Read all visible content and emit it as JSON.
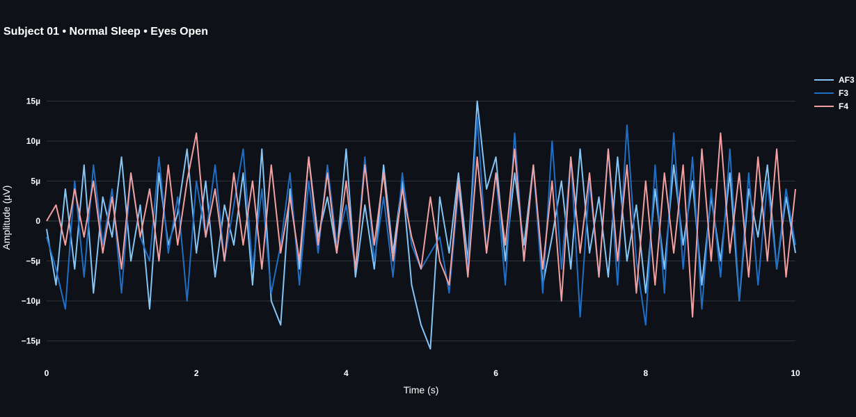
{
  "chart_data": {
    "type": "line",
    "title": "Subject 01 • Normal Sleep • Eyes Open",
    "xlabel": "Time (s)",
    "ylabel": "Amplitude (µV)",
    "xlim": [
      0,
      10
    ],
    "ylim": [
      -18,
      20
    ],
    "x_ticks": [
      0,
      2,
      4,
      6,
      8,
      10
    ],
    "x_tick_labels": [
      "0",
      "2",
      "4",
      "6",
      "8",
      "10"
    ],
    "y_ticks": [
      15,
      10,
      5,
      0,
      -5,
      -10,
      -15
    ],
    "y_tick_labels": [
      "15µ",
      "10µ",
      "5µ",
      "0",
      "−5µ",
      "−10µ",
      "−15µ"
    ],
    "grid": true,
    "legend_position": "top-right",
    "series": [
      {
        "name": "AF3",
        "color": "#85c5f5",
        "x": [
          0.0,
          0.125,
          0.25,
          0.375,
          0.5,
          0.625,
          0.75,
          0.875,
          1.0,
          1.125,
          1.25,
          1.375,
          1.5,
          1.625,
          1.75,
          1.875,
          2.0,
          2.125,
          2.25,
          2.375,
          2.5,
          2.625,
          2.75,
          2.875,
          3.0,
          3.125,
          3.25,
          3.375,
          3.5,
          3.625,
          3.75,
          3.875,
          4.0,
          4.125,
          4.25,
          4.375,
          4.5,
          4.625,
          4.75,
          4.875,
          5.0,
          5.125,
          5.25,
          5.375,
          5.5,
          5.625,
          5.75,
          5.875,
          6.0,
          6.125,
          6.25,
          6.375,
          6.5,
          6.625,
          6.75,
          6.875,
          7.0,
          7.125,
          7.25,
          7.375,
          7.5,
          7.625,
          7.75,
          7.875,
          8.0,
          8.125,
          8.25,
          8.375,
          8.5,
          8.625,
          8.75,
          8.875,
          9.0,
          9.125,
          9.25,
          9.375,
          9.5,
          9.625,
          9.75,
          9.875,
          10.0
        ],
        "y": [
          -1,
          -8,
          4,
          -6,
          7,
          -9,
          3,
          -2,
          8,
          -5,
          2,
          -11,
          6,
          -3,
          1,
          9,
          -4,
          5,
          -7,
          2,
          -3,
          6,
          -8,
          9,
          -10,
          -13,
          4,
          -6,
          8,
          -2,
          3,
          -4,
          9,
          -7,
          2,
          -6,
          7,
          -4,
          5,
          -8,
          -13,
          -16,
          3,
          -4,
          6,
          -5,
          15,
          4,
          8,
          -5,
          6,
          -3,
          7,
          -8,
          -2,
          5,
          -6,
          9,
          -4,
          3,
          -7,
          8,
          -5,
          2,
          -9,
          4,
          -6,
          7,
          -3,
          5,
          -8,
          3,
          -5,
          6,
          -10,
          4,
          -2,
          7,
          -6,
          3,
          -4
        ]
      },
      {
        "name": "F3",
        "color": "#1f6fc6",
        "x": [
          0.0,
          0.125,
          0.25,
          0.375,
          0.5,
          0.625,
          0.75,
          0.875,
          1.0,
          1.125,
          1.25,
          1.375,
          1.5,
          1.625,
          1.75,
          1.875,
          2.0,
          2.125,
          2.25,
          2.375,
          2.5,
          2.625,
          2.75,
          2.875,
          3.0,
          3.125,
          3.25,
          3.375,
          3.5,
          3.625,
          3.75,
          3.875,
          4.0,
          4.125,
          4.25,
          4.375,
          4.5,
          4.625,
          4.75,
          4.875,
          5.0,
          5.125,
          5.25,
          5.375,
          5.5,
          5.625,
          5.75,
          5.875,
          6.0,
          6.125,
          6.25,
          6.375,
          6.5,
          6.625,
          6.75,
          6.875,
          7.0,
          7.125,
          7.25,
          7.375,
          7.5,
          7.625,
          7.75,
          7.875,
          8.0,
          8.125,
          8.25,
          8.375,
          8.5,
          8.625,
          8.75,
          8.875,
          9.0,
          9.125,
          9.25,
          9.375,
          9.5,
          9.625,
          9.75,
          9.875,
          10.0
        ],
        "y": [
          -2,
          -6,
          -11,
          5,
          -7,
          7,
          -3,
          4,
          -9,
          6,
          -2,
          -5,
          8,
          -4,
          3,
          -10,
          5,
          -2,
          7,
          -5,
          2,
          9,
          -6,
          4,
          -9,
          -3,
          6,
          -8,
          5,
          -4,
          7,
          -3,
          2,
          -6,
          8,
          -5,
          3,
          -7,
          6,
          -3,
          -6,
          -4,
          -2,
          -9,
          4,
          -6,
          13,
          -4,
          6,
          -8,
          11,
          -5,
          7,
          -9,
          10,
          -6,
          8,
          -12,
          5,
          -7,
          9,
          -8,
          12,
          -5,
          -13,
          7,
          -9,
          11,
          -6,
          8,
          -11,
          4,
          -7,
          9,
          -10,
          6,
          -8,
          5,
          -6,
          4,
          -3
        ]
      },
      {
        "name": "F4",
        "color": "#f4a0a0",
        "x": [
          0.0,
          0.125,
          0.25,
          0.375,
          0.5,
          0.625,
          0.75,
          0.875,
          1.0,
          1.125,
          1.25,
          1.375,
          1.5,
          1.625,
          1.75,
          1.875,
          2.0,
          2.125,
          2.25,
          2.375,
          2.5,
          2.625,
          2.75,
          2.875,
          3.0,
          3.125,
          3.25,
          3.375,
          3.5,
          3.625,
          3.75,
          3.875,
          4.0,
          4.125,
          4.25,
          4.375,
          4.5,
          4.625,
          4.75,
          4.875,
          5.0,
          5.125,
          5.25,
          5.375,
          5.5,
          5.625,
          5.75,
          5.875,
          6.0,
          6.125,
          6.25,
          6.375,
          6.5,
          6.625,
          6.75,
          6.875,
          7.0,
          7.125,
          7.25,
          7.375,
          7.5,
          7.625,
          7.75,
          7.875,
          8.0,
          8.125,
          8.25,
          8.375,
          8.5,
          8.625,
          8.75,
          8.875,
          9.0,
          9.125,
          9.25,
          9.375,
          9.5,
          9.625,
          9.75,
          9.875,
          10.0
        ],
        "y": [
          0,
          2,
          -3,
          4,
          -2,
          5,
          -4,
          3,
          -6,
          6,
          -2,
          4,
          -5,
          7,
          -3,
          5,
          11,
          -2,
          4,
          -5,
          6,
          -3,
          5,
          -6,
          7,
          -4,
          3,
          -5,
          8,
          -3,
          6,
          -4,
          5,
          -6,
          7,
          -3,
          6,
          -5,
          4,
          -2,
          -6,
          3,
          -5,
          -8,
          5,
          -7,
          8,
          -4,
          6,
          -3,
          9,
          -5,
          7,
          -6,
          5,
          -10,
          8,
          -4,
          6,
          -7,
          9,
          -5,
          7,
          -9,
          5,
          -8,
          6,
          -4,
          7,
          -12,
          9,
          -5,
          11,
          -4,
          6,
          -7,
          8,
          -5,
          9,
          -7,
          4
        ]
      }
    ]
  }
}
